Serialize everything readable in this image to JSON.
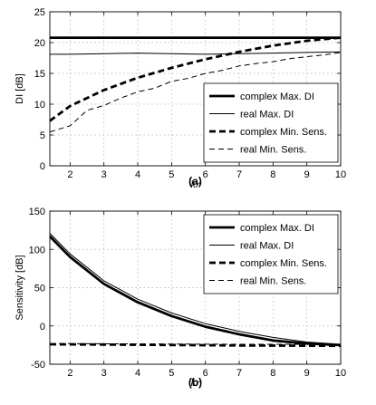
{
  "chart_data": [
    {
      "type": "line",
      "caption": "(a)",
      "xlabel": "kr",
      "ylabel": "DI [dB]",
      "xlim": [
        1.4,
        10
      ],
      "ylim": [
        0,
        25
      ],
      "xticks": [
        2,
        3,
        4,
        5,
        6,
        7,
        8,
        9,
        10
      ],
      "yticks": [
        0,
        5,
        10,
        15,
        20,
        25
      ],
      "grid": true,
      "legend_position": "bottom-right",
      "series": [
        {
          "name": "complex Max. DI",
          "style": "thick-solid",
          "x": [
            1.4,
            10
          ],
          "y": [
            20.8,
            20.8
          ]
        },
        {
          "name": "real Max. DI",
          "style": "thin-solid",
          "x": [
            1.4,
            2,
            3,
            4,
            5,
            6,
            7,
            8,
            9,
            10
          ],
          "y": [
            18.1,
            18.1,
            18.2,
            18.3,
            18.2,
            18.1,
            18.2,
            18.3,
            18.4,
            18.5
          ]
        },
        {
          "name": "complex Min. Sens.",
          "style": "thick-dashed",
          "x": [
            1.4,
            2,
            3,
            4,
            5,
            6,
            7,
            8,
            9,
            10
          ],
          "y": [
            7.3,
            9.7,
            12.3,
            14.3,
            15.9,
            17.3,
            18.5,
            19.5,
            20.3,
            20.8
          ]
        },
        {
          "name": "real Min. Sens.",
          "style": "thin-dashed",
          "x": [
            1.4,
            2,
            2.5,
            3,
            3.5,
            4,
            4.5,
            5,
            5.5,
            6,
            6.5,
            7,
            7.5,
            8,
            8.5,
            9,
            9.5,
            10
          ],
          "y": [
            5.5,
            6.5,
            9.0,
            9.8,
            11.0,
            12.0,
            12.6,
            13.7,
            14.2,
            15.0,
            15.5,
            16.2,
            16.6,
            16.9,
            17.4,
            17.7,
            18.0,
            18.4
          ]
        }
      ]
    },
    {
      "type": "line",
      "caption": "(b)",
      "xlabel": "kr",
      "ylabel": "Sensitivity [dB]",
      "xlim": [
        1.4,
        10
      ],
      "ylim": [
        -50,
        150
      ],
      "xticks": [
        2,
        3,
        4,
        5,
        6,
        7,
        8,
        9,
        10
      ],
      "yticks": [
        -50,
        0,
        50,
        100,
        150
      ],
      "grid": true,
      "legend_position": "top-right",
      "series": [
        {
          "name": "complex Max. DI",
          "style": "thick-solid",
          "x": [
            1.4,
            2,
            3,
            4,
            5,
            6,
            7,
            8,
            9,
            10
          ],
          "y": [
            117,
            90,
            55,
            31,
            13,
            -1,
            -11,
            -19,
            -23,
            -25
          ]
        },
        {
          "name": "real Max. DI",
          "style": "thin-solid",
          "x": [
            1.4,
            2,
            3,
            4,
            5,
            6,
            7,
            8,
            9,
            10
          ],
          "y": [
            121,
            94,
            59,
            35,
            17,
            3,
            -7,
            -15,
            -21,
            -24
          ]
        },
        {
          "name": "complex Min. Sens.",
          "style": "thick-dashed",
          "x": [
            1.4,
            4,
            7,
            10
          ],
          "y": [
            -24,
            -24.5,
            -25.5,
            -26
          ]
        },
        {
          "name": "real Min. Sens.",
          "style": "thin-dashed",
          "x": [
            1.4,
            4,
            7,
            10
          ],
          "y": [
            -23,
            -23.5,
            -24,
            -24
          ]
        }
      ]
    }
  ]
}
